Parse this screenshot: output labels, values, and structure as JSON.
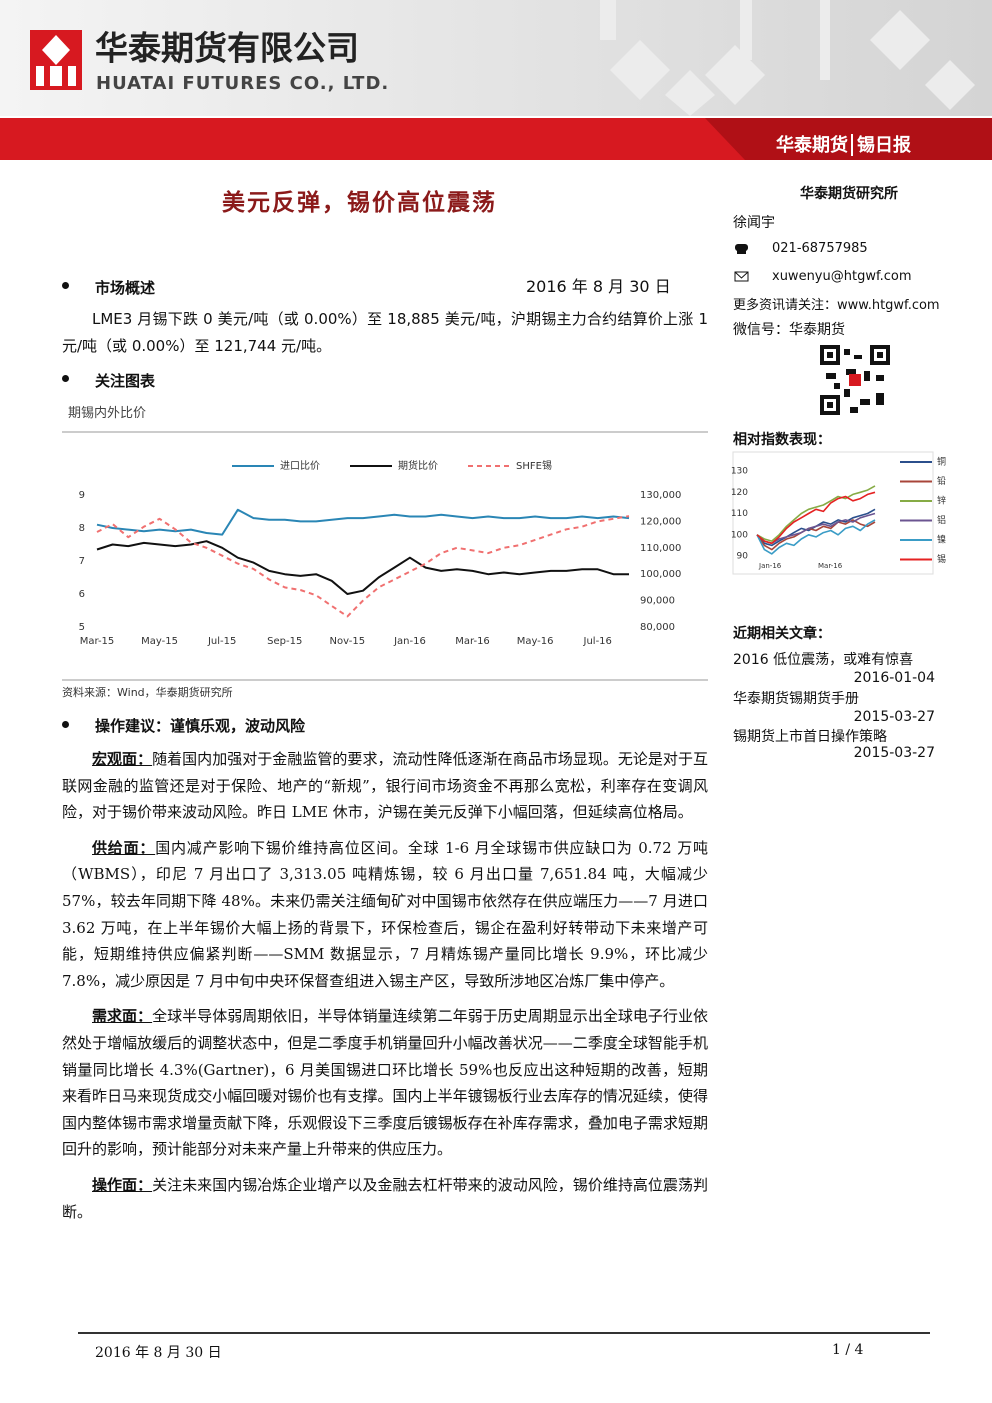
{
  "header": {
    "company_cn": "华泰期货有限公司",
    "company_en": "HUATAI FUTURES CO., LTD.",
    "brand": "华泰期货",
    "report": "锡日报"
  },
  "title": "美元反弹，锡价高位震荡",
  "sidebar": {
    "institute": "华泰期货研究所",
    "analyst": "徐闻宇",
    "phone": "021-68757985",
    "email": "xuwenyu@htgwf.com",
    "more": "更多资讯请关注：www.htgwf.com",
    "wechat": "微信号：华泰期货",
    "articles_title": "近期相关文章：",
    "articles": [
      {
        "title": "2016 低位震荡，或难有惊喜",
        "date": "2016-01-04"
      },
      {
        "title": "华泰期货锡期货手册",
        "date": "2015-03-27"
      },
      {
        "title": "锡期货上市首日操作策略",
        "date": "2015-03-27"
      }
    ]
  },
  "overview": {
    "heading": "市场概述",
    "date": "2016 年 8 月 30 日",
    "text": "LME3 月锡下跌 0 美元/吨（或 0.00%）至 18,885 美元/吨，沪期锡主力合约结算价上涨 1 元/吨（或 0.00%）至 121,744 元/吨。"
  },
  "focus": {
    "heading": "关注图表",
    "caption": "期锡内外比价",
    "source": "资料来源：Wind，华泰期货研究所"
  },
  "advice": {
    "heading": "操作建议：谨慎乐观，波动风险",
    "paragraphs": [
      {
        "lead": "宏观面：",
        "text": "随着国内加强对于金融监管的要求，流动性降低逐渐在商品市场显现。无论是对于互联网金融的监管还是对于保险、地产的“新规”，银行间市场资金不再那么宽松，利率存在变调风险，对于锡价带来波动风险。昨日 LME 休市，沪锡在美元反弹下小幅回落，但延续高位格局。"
      },
      {
        "lead": "供给面：",
        "text": "国内减产影响下锡价维持高位区间。全球 1-6 月全球锡市供应缺口为 0.72 万吨（WBMS），印尼 7 月出口了 3,313.05 吨精炼锡，较 6 月出口量 7,651.84 吨，大幅减少 57%，较去年同期下降 48%。未来仍需关注缅甸矿对中国锡市依然存在供应端压力——7 月进口 3.62 万吨，在上半年锡价大幅上扬的背景下，环保检查后，锡企在盈利好转带动下未来增产可能，短期维持供应偏紧判断——SMM 数据显示，7 月精炼锡产量同比增长 9.9%，环比减少 7.8%，减少原因是 7 月中旬中央环保督查组进入锡主产区，导致所涉地区冶炼厂集中停产。"
      },
      {
        "lead": "需求面：",
        "text": "全球半导体弱周期依旧，半导体销量连续第二年弱于历史周期显示出全球电子行业依然处于增幅放缓后的调整状态中，但是二季度手机销量回升小幅改善状况——二季度全球智能手机销量同比增长 4.3%(Gartner)，6 月美国锡进口环比增长 59%也反应出这种短期的改善，短期来看昨日马来现货成交小幅回暖对锡价也有支撑。国内上半年镀锡板行业去库存的情况延续，使得国内整体锡市需求增量贡献下降，乐观假设下三季度后镀锡板存在补库存需求，叠加电子需求短期回升的影响，预计能部分对未来产量上升带来的供应压力。"
      },
      {
        "lead": "操作面：",
        "text": "关注未来国内锡冶炼企业增产以及金融去杠杆带来的波动风险，锡价维持高位震荡判断。"
      }
    ]
  },
  "footer": {
    "date": "2016 年 8 月 30 日",
    "page": "1 / 4"
  },
  "chart_data": [
    {
      "type": "line",
      "categories": [
        "Mar-15",
        null,
        null,
        null,
        "May-15",
        null,
        null,
        null,
        "Jul-15",
        null,
        null,
        null,
        "Sep-15",
        null,
        null,
        null,
        "Nov-15",
        null,
        null,
        null,
        "Jan-16",
        null,
        null,
        null,
        "Mar-16",
        null,
        null,
        null,
        "May-16",
        null,
        null,
        null,
        "Jul-16",
        null,
        null
      ],
      "ylim": [
        5,
        9
      ],
      "yticks": [
        5,
        6,
        7,
        8,
        9
      ],
      "y2lim": [
        80000,
        130000
      ],
      "y2ticks": [
        {
          "value": 80000,
          "label": "80,000"
        },
        {
          "value": 90000,
          "label": "90,000"
        },
        {
          "value": 100000,
          "label": "100,000"
        },
        {
          "value": 110000,
          "label": "110,000"
        },
        {
          "value": 120000,
          "label": "120,000"
        },
        {
          "value": 130000,
          "label": "130,000"
        }
      ],
      "grid": false,
      "series": [
        {
          "name": "进口比价",
          "color": "#2a86b5",
          "values": [
            8.1,
            8.0,
            7.95,
            7.9,
            7.95,
            7.9,
            7.95,
            7.85,
            7.8,
            8.55,
            8.3,
            8.25,
            8.25,
            8.2,
            8.2,
            8.25,
            8.3,
            8.3,
            8.35,
            8.4,
            8.35,
            8.35,
            8.4,
            8.35,
            8.3,
            8.35,
            8.3,
            8.3,
            8.35,
            8.3,
            8.3,
            8.35,
            8.3,
            8.35,
            8.3
          ]
        },
        {
          "name": "期货比价",
          "color": "#111111",
          "values": [
            7.35,
            7.5,
            7.45,
            7.55,
            7.5,
            7.45,
            7.5,
            7.6,
            7.4,
            7.1,
            6.95,
            6.7,
            6.6,
            6.55,
            6.6,
            6.4,
            6.0,
            6.1,
            6.5,
            6.8,
            7.1,
            6.8,
            6.7,
            6.75,
            6.7,
            6.6,
            6.65,
            6.6,
            6.65,
            6.7,
            6.7,
            6.75,
            6.75,
            6.6,
            6.6
          ]
        },
        {
          "name": "SHFE锡",
          "color": "#f07070",
          "dashed": true,
          "axis": "y2",
          "values": [
            116000,
            119000,
            114000,
            118000,
            121000,
            117000,
            112000,
            110000,
            107000,
            104000,
            102000,
            98000,
            95000,
            94000,
            92000,
            88000,
            84000,
            90000,
            95000,
            98000,
            101000,
            104000,
            108000,
            110000,
            109000,
            108000,
            110000,
            111000,
            113000,
            115000,
            117000,
            118000,
            120000,
            121000,
            122000
          ]
        }
      ]
    },
    {
      "type": "line",
      "title": "相对指数表现：",
      "categories": [
        "Jan-16",
        null,
        null,
        null,
        null,
        null,
        null,
        null,
        "Mar-16",
        null,
        null,
        null,
        null,
        null,
        null,
        null,
        null
      ],
      "ylim": [
        86,
        130
      ],
      "yticks": [
        90,
        100,
        110,
        120,
        130
      ],
      "grid": false,
      "series": [
        {
          "name": "铜",
          "color": "#2b4f8c",
          "values": [
            100,
            96,
            95,
            97,
            99,
            101,
            103,
            102,
            104,
            106,
            105,
            107,
            106,
            108,
            109,
            110,
            112
          ]
        },
        {
          "name": "铅",
          "color": "#a8453a",
          "values": [
            100,
            95,
            93,
            96,
            98,
            99,
            101,
            103,
            102,
            104,
            103,
            106,
            105,
            107,
            105,
            104,
            106
          ]
        },
        {
          "name": "锌",
          "color": "#86ab45",
          "values": [
            100,
            98,
            97,
            100,
            104,
            107,
            110,
            112,
            113,
            114,
            116,
            118,
            117,
            119,
            120,
            121,
            123
          ]
        },
        {
          "name": "铝",
          "color": "#6b5591",
          "values": [
            100,
            97,
            96,
            98,
            99,
            100,
            101,
            103,
            104,
            105,
            104,
            106,
            107,
            106,
            108,
            109,
            110
          ]
        },
        {
          "name": "镍",
          "color": "#3a9cc6",
          "values": [
            100,
            93,
            91,
            94,
            96,
            95,
            98,
            100,
            99,
            101,
            102,
            100,
            103,
            104,
            102,
            105,
            107
          ]
        },
        {
          "name": "锡",
          "color": "#e52222",
          "values": [
            100,
            97,
            96,
            99,
            103,
            106,
            108,
            110,
            112,
            111,
            115,
            117,
            118,
            116,
            117,
            119,
            120
          ]
        }
      ]
    }
  ]
}
